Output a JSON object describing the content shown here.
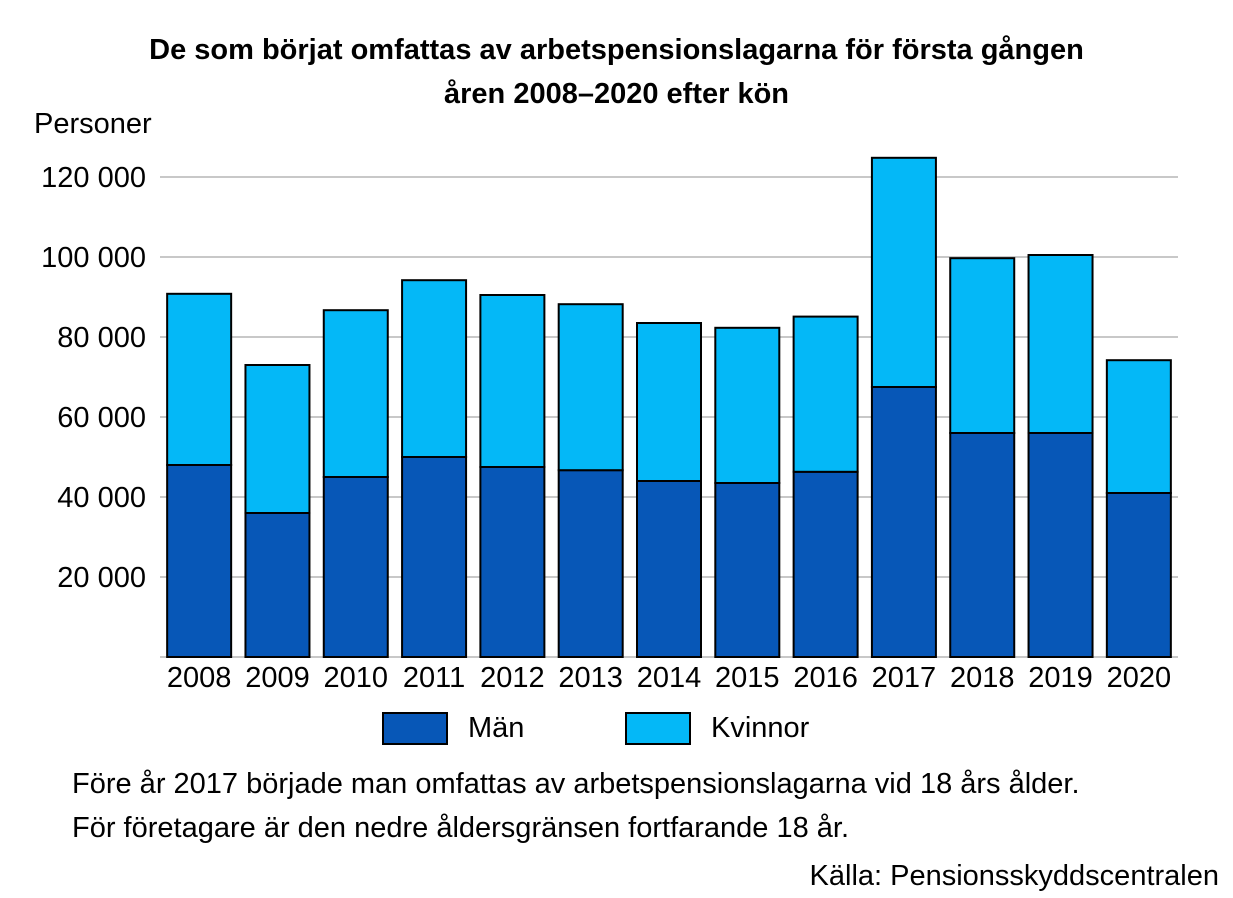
{
  "title_line1": "De som börjat omfattas av arbetspensionslagarna för första gången",
  "title_line2": "åren 2008–2020 efter kön",
  "y_unit_label": "Personer",
  "note_line1": "Före år 2017 började man omfattas av arbetspensionslagarna vid 18 års ålder.",
  "note_line2": "För företagare är den nedre åldersgränsen fortfarande 18 år.",
  "source": "Källa: Pensionsskyddscentralen",
  "colors": {
    "man": "#0757B7",
    "kvinnor": "#04B8F7",
    "grid": "#A6A6A6",
    "outline": "#000000"
  },
  "chart_data": {
    "type": "bar",
    "stacked": true,
    "categories": [
      "2008",
      "2009",
      "2010",
      "2011",
      "2012",
      "2013",
      "2014",
      "2015",
      "2016",
      "2017",
      "2018",
      "2019",
      "2020"
    ],
    "series": [
      {
        "name": "Män",
        "values": [
          48000,
          36000,
          45000,
          50000,
          47500,
          46700,
          44000,
          43500,
          46300,
          67500,
          56000,
          56000,
          41000
        ]
      },
      {
        "name": "Kvinnor",
        "values": [
          42800,
          37000,
          41700,
          44200,
          43000,
          41500,
          39500,
          38800,
          38800,
          57300,
          43700,
          44500,
          33200
        ]
      }
    ],
    "ylim": [
      0,
      120000
    ],
    "yticks": [
      20000,
      40000,
      60000,
      80000,
      100000,
      120000
    ],
    "ytick_labels": [
      "20 000",
      "40 000",
      "60 000",
      "80 000",
      "100 000",
      "120 000"
    ],
    "grid": true,
    "legend_position": "bottom"
  }
}
